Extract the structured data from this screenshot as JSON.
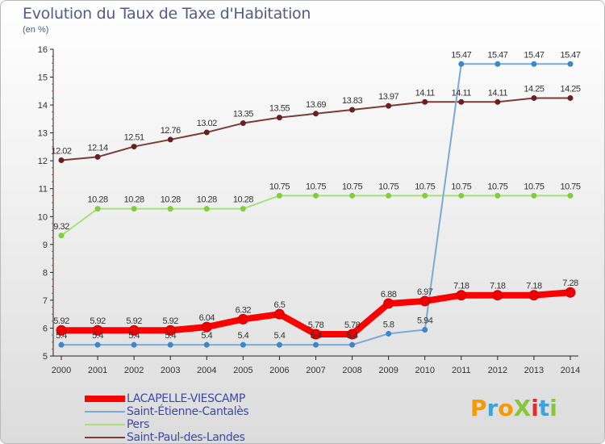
{
  "title": "Evolution du Taux de Taxe d'Habitation",
  "unit_label": "(en %)",
  "logo": {
    "text": "ProXiti",
    "colors": [
      "#f59a00",
      "#3fa3d8",
      "#f59a00",
      "#8bc43f",
      "#e9282b",
      "#3fa3d8",
      "#8bc43f"
    ]
  },
  "chart_data": {
    "type": "line",
    "x": [
      "2000",
      "2001",
      "2002",
      "2003",
      "2004",
      "2005",
      "2006",
      "2007",
      "2008",
      "2009",
      "2010",
      "2011",
      "2012",
      "2013",
      "2014"
    ],
    "ylim": [
      5,
      16
    ],
    "yticks": [
      "5",
      "6",
      "7",
      "8",
      "9",
      "10",
      "11",
      "12",
      "13",
      "14",
      "15",
      "16"
    ],
    "grid": false,
    "legend_position": "bottom-left",
    "series": [
      {
        "name": "LACAPELLE-VIESCAMP",
        "color": "#ff0000",
        "marker_color": "#ee0000",
        "values": [
          5.92,
          5.92,
          5.92,
          5.92,
          6.04,
          6.32,
          6.5,
          5.78,
          5.78,
          6.88,
          6.97,
          7.18,
          7.18,
          7.18,
          7.28
        ],
        "labels": [
          "5.92",
          "5.92",
          "5.92",
          "5.92",
          "6.04",
          "6.32",
          "6.5",
          "5.78",
          "5.78",
          "6.88",
          "6.97",
          "7.18",
          "7.18",
          "7.18",
          "7.28"
        ]
      },
      {
        "name": "Saint-Étienne-Cantalès",
        "color": "#7aaad8",
        "marker_color": "#3d86cc",
        "values": [
          5.4,
          5.4,
          5.4,
          5.4,
          5.4,
          5.4,
          5.4,
          5.4,
          5.4,
          5.8,
          5.94,
          15.47,
          15.47,
          15.47,
          15.47
        ],
        "labels": [
          "5.4",
          "5.4",
          "5.4",
          "5.4",
          "5.4",
          "5.4",
          "5.4",
          "5.4",
          "5.4",
          "5.8",
          "5.94",
          "15.47",
          "15.47",
          "15.47",
          "15.47"
        ]
      },
      {
        "name": "Pers",
        "color": "#a8e07a",
        "marker_color": "#7dd03c",
        "values": [
          9.32,
          10.28,
          10.28,
          10.28,
          10.28,
          10.28,
          10.75,
          10.75,
          10.75,
          10.75,
          10.75,
          10.75,
          10.75,
          10.75,
          10.75
        ],
        "labels": [
          "9.32",
          "10.28",
          "10.28",
          "10.28",
          "10.28",
          "10.28",
          "10.75",
          "10.75",
          "10.75",
          "10.75",
          "10.75",
          "10.75",
          "10.75",
          "10.75",
          "10.75"
        ]
      },
      {
        "name": "Saint-Paul-des-Landes",
        "color": "#7a3b3b",
        "marker_color": "#6b1f1f",
        "values": [
          12.02,
          12.14,
          12.51,
          12.76,
          13.02,
          13.35,
          13.55,
          13.69,
          13.83,
          13.97,
          14.11,
          14.11,
          14.11,
          14.25,
          14.25
        ],
        "labels": [
          "12.02",
          "12.14",
          "12.51",
          "12.76",
          "13.02",
          "13.35",
          "13.55",
          "13.69",
          "13.83",
          "13.97",
          "14.11",
          "14.11",
          "14.11",
          "14.25",
          "14.25"
        ]
      }
    ]
  }
}
